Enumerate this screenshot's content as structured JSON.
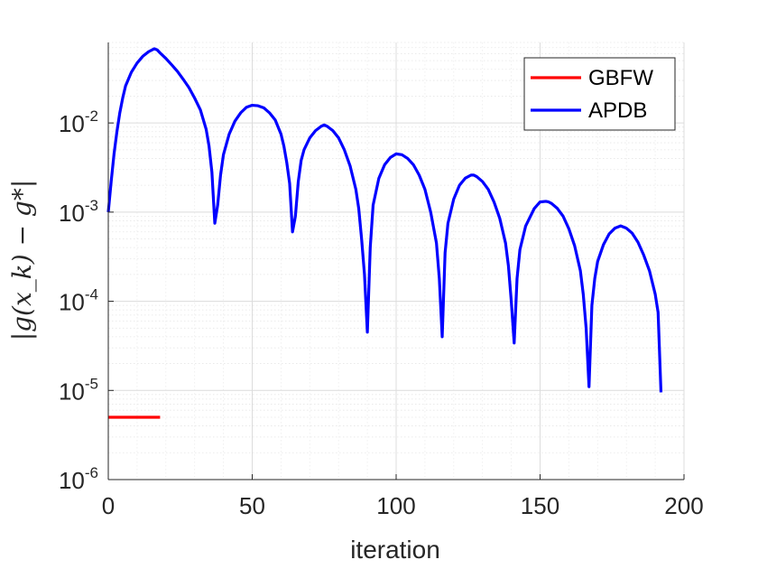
{
  "chart_data": {
    "type": "line",
    "title": "",
    "xlabel": "iteration",
    "ylabel": "|g(x_k) − g*|",
    "xlim": [
      0,
      200
    ],
    "ylim": [
      1e-06,
      0.08
    ],
    "yscale": "log",
    "grid": true,
    "minor_grid": true,
    "legend_position": "top-right",
    "x_ticks": [
      0,
      50,
      100,
      150,
      200
    ],
    "y_ticks": [
      {
        "value": 1e-06,
        "base": "10",
        "exp": "-6"
      },
      {
        "value": 1e-05,
        "base": "10",
        "exp": "-5"
      },
      {
        "value": 0.0001,
        "base": "10",
        "exp": "-4"
      },
      {
        "value": 0.001,
        "base": "10",
        "exp": "-3"
      },
      {
        "value": 0.01,
        "base": "10",
        "exp": "-2"
      }
    ],
    "series": [
      {
        "name": "GBFW",
        "color": "#ff0000",
        "x": [
          0,
          18
        ],
        "y": [
          5e-06,
          5e-06
        ]
      },
      {
        "name": "APDB",
        "color": "#0000ff",
        "x": [
          0,
          1,
          2,
          3,
          4,
          5,
          6,
          8,
          10,
          12,
          14,
          16,
          17,
          18,
          20,
          22,
          24,
          26,
          28,
          30,
          32,
          34,
          35,
          36,
          37,
          38,
          39,
          40,
          42,
          44,
          46,
          48,
          50,
          52,
          54,
          56,
          58,
          60,
          61,
          62,
          63,
          64,
          65,
          66,
          67,
          68,
          70,
          72,
          74,
          75,
          76,
          78,
          80,
          82,
          84,
          86,
          87,
          88,
          89,
          90,
          91,
          92,
          94,
          96,
          98,
          100,
          102,
          104,
          106,
          108,
          110,
          112,
          114,
          115,
          116,
          117,
          118,
          120,
          122,
          124,
          126,
          127,
          128,
          130,
          132,
          134,
          136,
          138,
          139,
          140,
          141,
          142,
          143,
          145,
          148,
          150,
          152,
          153,
          154,
          156,
          158,
          160,
          162,
          164,
          165,
          166,
          167,
          168,
          169,
          170,
          172,
          174,
          176,
          178,
          180,
          182,
          184,
          186,
          188,
          190,
          191,
          192
        ],
        "y": [
          0.001,
          0.0022,
          0.0045,
          0.008,
          0.013,
          0.019,
          0.026,
          0.037,
          0.047,
          0.056,
          0.063,
          0.068,
          0.066,
          0.061,
          0.053,
          0.045,
          0.038,
          0.031,
          0.025,
          0.019,
          0.014,
          0.0085,
          0.0055,
          0.0028,
          0.00075,
          0.0012,
          0.0026,
          0.0044,
          0.0075,
          0.0105,
          0.013,
          0.015,
          0.0158,
          0.0156,
          0.0148,
          0.013,
          0.0108,
          0.0075,
          0.0055,
          0.0036,
          0.0021,
          0.0006,
          0.0009,
          0.0022,
          0.0038,
          0.005,
          0.0068,
          0.0082,
          0.0092,
          0.0095,
          0.0092,
          0.0082,
          0.0068,
          0.005,
          0.0033,
          0.0018,
          0.0011,
          0.0005,
          0.0002,
          4.5e-05,
          0.0004,
          0.0012,
          0.0024,
          0.0034,
          0.0041,
          0.0045,
          0.0044,
          0.004,
          0.0034,
          0.0026,
          0.0018,
          0.001,
          0.00045,
          0.00018,
          4e-05,
          0.00035,
          0.00075,
          0.0014,
          0.002,
          0.0024,
          0.0026,
          0.0026,
          0.0025,
          0.0022,
          0.0018,
          0.0013,
          0.00085,
          0.00045,
          0.00025,
          0.0001,
          3.4e-05,
          0.00018,
          0.00038,
          0.0007,
          0.0011,
          0.0013,
          0.00132,
          0.0013,
          0.00125,
          0.0011,
          0.0009,
          0.00065,
          0.00042,
          0.00022,
          0.00012,
          5e-05,
          1.1e-05,
          9e-05,
          0.00018,
          0.00028,
          0.00043,
          0.00057,
          0.00066,
          0.0007,
          0.00066,
          0.00058,
          0.00046,
          0.00033,
          0.00022,
          0.00012,
          7.5e-05,
          9.5e-06
        ]
      }
    ]
  }
}
